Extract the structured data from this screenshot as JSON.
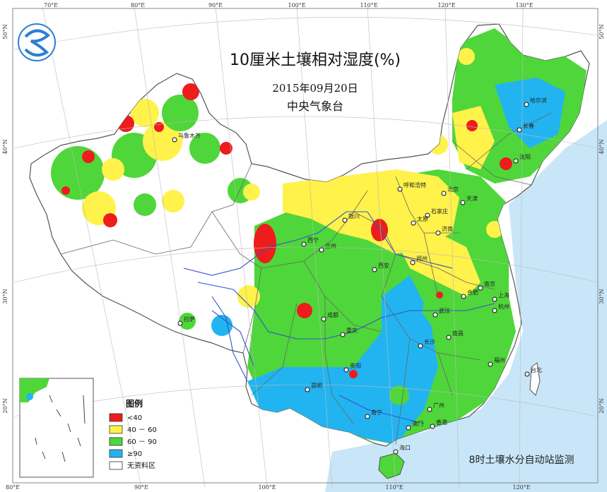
{
  "title": "10厘米土壤相对湿度(%)",
  "date": "2015年09月20日",
  "agency": "中央气象台",
  "note": "8时土壤水分自动站监测",
  "colors": {
    "sea": "#c8e6f8",
    "class_lt40": "#ee1c1c",
    "class_40_60": "#fff24a",
    "class_60_90": "#4fd63a",
    "class_gt90": "#22b4f0",
    "no_data": "#ffffff",
    "border": "#555555",
    "river": "#3355cc"
  },
  "legend": {
    "title": "图例",
    "items": [
      {
        "label": "<40",
        "color_key": "class_lt40"
      },
      {
        "label": "40 － 60",
        "color_key": "class_40_60"
      },
      {
        "label": "60 － 90",
        "color_key": "class_60_90"
      },
      {
        "label": "≥90",
        "color_key": "class_gt90"
      },
      {
        "label": "无资料区",
        "color_key": "no_data"
      }
    ]
  },
  "graticule": {
    "lon_top": [
      "70°E",
      "80°E",
      "90°E",
      "100°E",
      "110°E",
      "120°E",
      "130°E"
    ],
    "lon_bottom": [
      "80°E",
      "90°E",
      "100°E",
      "110°E",
      "120°E"
    ],
    "lat_left": [
      "50°N",
      "40°N",
      "30°N",
      "20°N"
    ],
    "lat_right": [
      "50°N",
      "40°N",
      "30°N",
      "20°N"
    ]
  },
  "cities": [
    {
      "name": "乌鲁木齐"
    },
    {
      "name": "哈尔滨"
    },
    {
      "name": "长春"
    },
    {
      "name": "沈阳"
    },
    {
      "name": "呼和浩特"
    },
    {
      "name": "北京"
    },
    {
      "name": "天津"
    },
    {
      "name": "石家庄"
    },
    {
      "name": "太原"
    },
    {
      "name": "银川"
    },
    {
      "name": "西宁"
    },
    {
      "name": "兰州"
    },
    {
      "name": "济南"
    },
    {
      "name": "郑州"
    },
    {
      "name": "西安"
    },
    {
      "name": "南京"
    },
    {
      "name": "合肥"
    },
    {
      "name": "上海"
    },
    {
      "name": "杭州"
    },
    {
      "name": "武汉"
    },
    {
      "name": "成都"
    },
    {
      "name": "重庆"
    },
    {
      "name": "拉萨"
    },
    {
      "name": "长沙"
    },
    {
      "name": "南昌"
    },
    {
      "name": "贵阳"
    },
    {
      "name": "福州"
    },
    {
      "name": "台北"
    },
    {
      "name": "昆明"
    },
    {
      "name": "南宁"
    },
    {
      "name": "广州"
    },
    {
      "name": "香港"
    },
    {
      "name": "澳门"
    },
    {
      "name": "海口"
    }
  ]
}
